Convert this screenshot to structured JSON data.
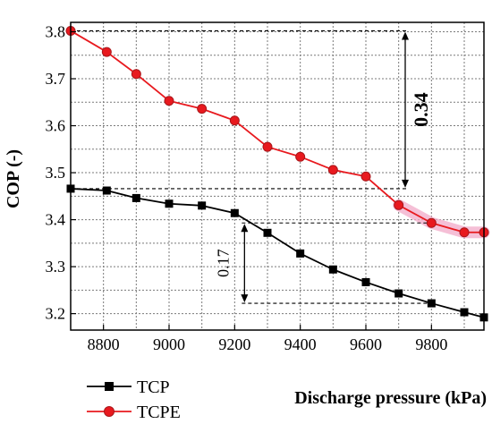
{
  "chart_data": {
    "type": "line",
    "xlabel": "Discharge pressure (kPa)",
    "ylabel": "COP (-)",
    "xlim": [
      8700,
      9960
    ],
    "ylim": [
      3.165,
      3.82
    ],
    "grid": true,
    "legend_position": "bottom-left",
    "x_ticks": [
      8800,
      9000,
      9200,
      9400,
      9600,
      9800
    ],
    "y_ticks": [
      3.2,
      3.3,
      3.4,
      3.5,
      3.6,
      3.7,
      3.8
    ],
    "series": [
      {
        "name": "TCP",
        "color": "#000000",
        "marker": "square",
        "x": [
          8700,
          8810,
          8900,
          9000,
          9100,
          9200,
          9300,
          9400,
          9500,
          9600,
          9700,
          9800,
          9900,
          9960
        ],
        "values": [
          3.466,
          3.462,
          3.446,
          3.434,
          3.43,
          3.414,
          3.372,
          3.328,
          3.294,
          3.267,
          3.243,
          3.222,
          3.203,
          3.192
        ]
      },
      {
        "name": "TCPE",
        "color": "#e8191e",
        "marker": "circle",
        "x": [
          8700,
          8810,
          8900,
          9000,
          9100,
          9200,
          9300,
          9400,
          9500,
          9600,
          9700,
          9800,
          9900,
          9960
        ],
        "values": [
          3.802,
          3.757,
          3.71,
          3.653,
          3.636,
          3.611,
          3.555,
          3.534,
          3.506,
          3.492,
          3.431,
          3.393,
          3.373,
          3.373
        ]
      }
    ],
    "annotations": [
      {
        "text": "0.34",
        "x": 9720,
        "y_from": 3.802,
        "y_to": 3.466
      },
      {
        "text": "0.17",
        "x": 9230,
        "y_from": 3.393,
        "y_to": 3.222
      }
    ],
    "highlight_color": "#f2a9c8"
  }
}
